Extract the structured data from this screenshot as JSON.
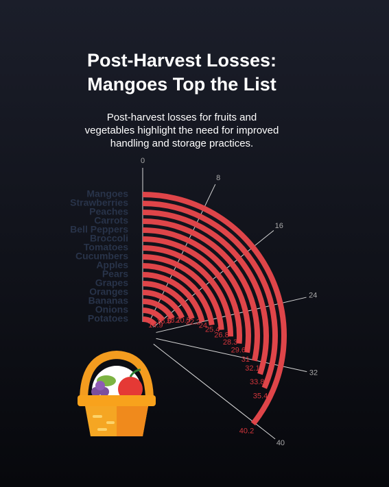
{
  "chart_data": {
    "type": "radial-bar",
    "title": [
      "Post-Harvest Losses:",
      "Mangoes Top the List"
    ],
    "subtitle": [
      "Post-harvest losses for fruits and",
      "vegetables highlight the need for improved",
      "handling and storage practices."
    ],
    "categories": [
      "Mangoes",
      "Strawberries",
      "Peaches",
      "Carrots",
      "Bell Peppers",
      "Broccoli",
      "Tomatoes",
      "Cucumbers",
      "Apples",
      "Pears",
      "Grapes",
      "Oranges",
      "Bananas",
      "Onions",
      "Potatoes"
    ],
    "values": [
      40.2,
      35.4,
      33.8,
      32.1,
      31,
      29.6,
      28.3,
      26.8,
      25.4,
      24,
      22.2,
      20.5,
      18.7,
      16.5,
      14.9
    ],
    "color": "#df4549",
    "ylim": [
      0,
      40
    ],
    "yticks": [
      0,
      8,
      16,
      24,
      32,
      40
    ]
  }
}
